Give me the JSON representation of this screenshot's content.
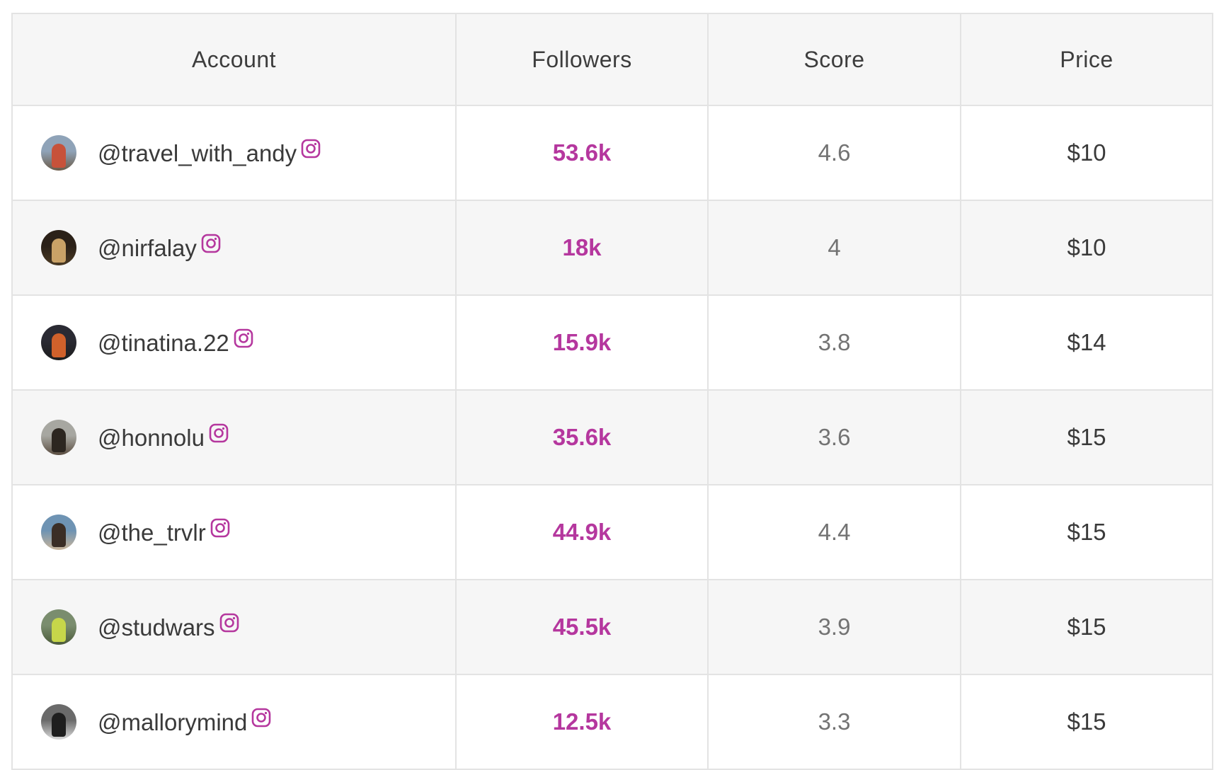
{
  "table": {
    "headers": {
      "account": "Account",
      "followers": "Followers",
      "score": "Score",
      "price": "Price"
    },
    "rows": [
      {
        "handle": "@travel_with_andy",
        "followers": "53.6k",
        "score": "4.6",
        "price": "$10",
        "avatar_colors": [
          "#8fa3b8",
          "#c7523a",
          "#6b5a47"
        ]
      },
      {
        "handle": "@nirfalay",
        "followers": "18k",
        "score": "4",
        "price": "$10",
        "avatar_colors": [
          "#2b2118",
          "#c9a267",
          "#4a3a24"
        ]
      },
      {
        "handle": "@tinatina.22",
        "followers": "15.9k",
        "score": "3.8",
        "price": "$14",
        "avatar_colors": [
          "#2a2a33",
          "#d0612b",
          "#1d1d1d"
        ]
      },
      {
        "handle": "@honnolu",
        "followers": "35.6k",
        "score": "3.6",
        "price": "$15",
        "avatar_colors": [
          "#a7a7a1",
          "#2c2620",
          "#5a4d40"
        ]
      },
      {
        "handle": "@the_trvlr",
        "followers": "44.9k",
        "score": "4.4",
        "price": "$15",
        "avatar_colors": [
          "#6e93b3",
          "#3b2e26",
          "#c9b49a"
        ]
      },
      {
        "handle": "@studwars",
        "followers": "45.5k",
        "score": "3.9",
        "price": "$15",
        "avatar_colors": [
          "#7a8d6e",
          "#c6d64a",
          "#4b5a3a"
        ]
      },
      {
        "handle": "@mallorymind",
        "followers": "12.5k",
        "score": "3.3",
        "price": "$15",
        "avatar_colors": [
          "#6a6a6a",
          "#1e1e1e",
          "#d9d9d9"
        ]
      }
    ]
  },
  "icons": {
    "platform_icon": "instagram-icon",
    "accent_color": "#b5379e"
  }
}
